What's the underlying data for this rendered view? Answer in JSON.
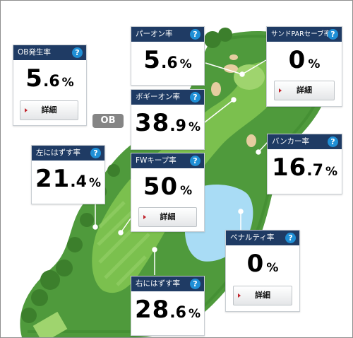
{
  "ob_badge": "OB",
  "cards": {
    "ob": {
      "title": "OB発生率",
      "int": "5",
      "dec": ".6",
      "unit": "%",
      "button": "詳細"
    },
    "par_on": {
      "title": "パーオン率",
      "int": "5",
      "dec": ".6",
      "unit": "%"
    },
    "sand_save": {
      "title": "サンドPARセーブ率",
      "int": "0",
      "dec": "",
      "unit": "%",
      "button": "詳細"
    },
    "bogey_on": {
      "title": "ボギーオン率",
      "int": "38",
      "dec": ".9",
      "unit": "%"
    },
    "left_miss": {
      "title": "左にはずす率",
      "int": "21",
      "dec": ".4",
      "unit": "%"
    },
    "fw_keep": {
      "title": "FWキープ率",
      "int": "50",
      "dec": "",
      "unit": "%",
      "button": "詳細"
    },
    "bunker": {
      "title": "バンカー率",
      "int": "16",
      "dec": ".7",
      "unit": "%"
    },
    "penalty": {
      "title": "ペナルティ率",
      "int": "0",
      "dec": "",
      "unit": "%",
      "button": "詳細"
    },
    "right_miss": {
      "title": "右にはずす率",
      "int": "28",
      "dec": ".6",
      "unit": "%"
    }
  },
  "help_glyph": "?",
  "colors": {
    "header": "#1f3b64",
    "help": "#1f8fd6",
    "rough": "#4f9a3c",
    "fairway": "#7bc04e",
    "water": "#a9dcf5",
    "sand": "#e6cda0",
    "ob_badge": "#858585"
  }
}
